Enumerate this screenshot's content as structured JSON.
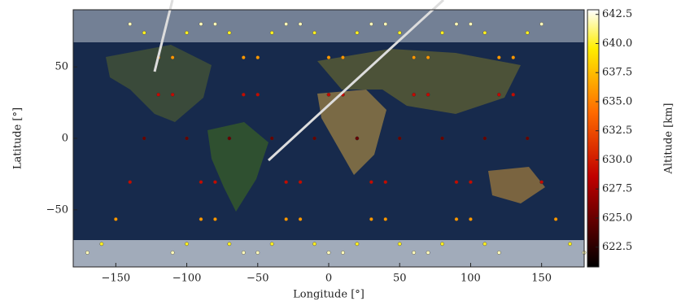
{
  "chart_data": {
    "type": "scatter",
    "xlabel": "Longitude [°]",
    "ylabel": "Latitude [°]",
    "colorbar_label": "Altitude [km]",
    "xlim": [
      -180,
      180
    ],
    "ylim": [
      -90,
      90
    ],
    "xticks": [
      {
        "value": -150,
        "label": "−150"
      },
      {
        "value": -100,
        "label": "−100"
      },
      {
        "value": -50,
        "label": "−50"
      },
      0,
      50,
      100,
      150
    ],
    "yticks": [
      {
        "value": -50,
        "label": "−50"
      },
      0,
      50
    ],
    "clim": [
      620.8,
      642.9
    ],
    "cticks": [
      622.5,
      {
        "value": 625,
        "label": "625.0"
      },
      627.5,
      {
        "value": 630,
        "label": "630.0"
      },
      632.5,
      {
        "value": 635,
        "label": "635.0"
      },
      637.5,
      {
        "value": 640,
        "label": "640.0"
      },
      642.5
    ],
    "series": [
      {
        "x": [
          -170,
          -160,
          -150,
          -140,
          -130,
          -120,
          -110,
          -100,
          -90,
          -110,
          -100,
          -90,
          -80,
          -70,
          -60,
          -50,
          -40,
          -30,
          -50,
          -40,
          -30,
          -20,
          -10,
          0,
          10,
          20,
          30,
          10,
          20,
          30,
          40,
          50,
          60,
          70,
          80,
          90,
          70,
          80,
          90,
          100,
          110,
          120,
          130,
          140,
          150,
          -140,
          -130,
          -120,
          -110,
          -100,
          -90,
          -80,
          -70,
          -60,
          -80,
          -70,
          -60,
          -50,
          -40,
          -30,
          -20,
          -10,
          0,
          -20,
          -10,
          0,
          10,
          20,
          30,
          40,
          50,
          60,
          40,
          50,
          60,
          70,
          80,
          90,
          100,
          110,
          120,
          100,
          110,
          120,
          130,
          140,
          150,
          160,
          170,
          180
        ],
        "values": [
          -80,
          -73.9,
          -56.6,
          -30.6,
          0,
          30.6,
          56.6,
          73.9,
          80,
          -80,
          -73.9,
          -56.6,
          -30.6,
          0,
          30.6,
          56.6,
          73.9,
          80,
          -80,
          -73.9,
          -56.6,
          -30.6,
          0,
          30.6,
          56.6,
          73.9,
          80,
          -80,
          -73.9,
          -56.6,
          -30.6,
          0,
          30.6,
          56.6,
          73.9,
          80,
          -80,
          -73.9,
          -56.6,
          -30.6,
          0,
          30.6,
          56.6,
          73.9,
          80,
          80,
          73.9,
          56.6,
          30.6,
          0,
          -30.6,
          -56.6,
          -73.9,
          -80,
          80,
          73.9,
          56.6,
          30.6,
          0,
          -30.6,
          -56.6,
          -73.9,
          -80,
          80,
          73.9,
          56.6,
          30.6,
          0,
          -30.6,
          -56.6,
          -73.9,
          -80,
          80,
          73.9,
          56.6,
          30.6,
          0,
          -30.6,
          -56.6,
          -73.9,
          -80,
          80,
          73.9,
          56.6,
          30.6,
          0,
          -30.6,
          -56.6,
          -73.9,
          -80
        ],
        "altitude": [
          642,
          640,
          636,
          629,
          625,
          629,
          636,
          640,
          642,
          642,
          640,
          636,
          629,
          625,
          629,
          636,
          640,
          642,
          642,
          640,
          636,
          629,
          625,
          629,
          636,
          640,
          642,
          642,
          640,
          636,
          629,
          625,
          629,
          636,
          640,
          642,
          642,
          640,
          636,
          629,
          625,
          629,
          636,
          640,
          642,
          642,
          640,
          636,
          629,
          625,
          629,
          636,
          640,
          642,
          642,
          640,
          636,
          629,
          625,
          629,
          636,
          640,
          642,
          642,
          640,
          636,
          629,
          625,
          629,
          636,
          640,
          642,
          642,
          640,
          636,
          629,
          625,
          629,
          636,
          640,
          642,
          642,
          640,
          636,
          629,
          625,
          629,
          636,
          640,
          642
        ]
      }
    ]
  }
}
